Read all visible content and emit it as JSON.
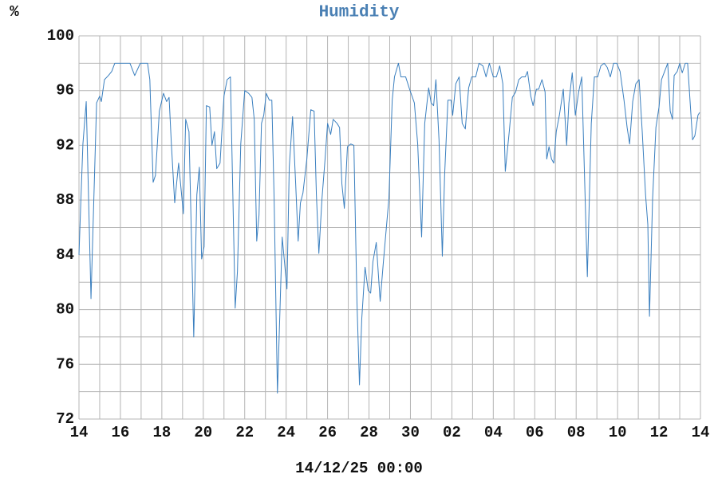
{
  "chart_data": {
    "type": "line",
    "title": "Humidity",
    "y_label": "%",
    "x_label": "14/12/25 00:00",
    "color": "#3a7fbf",
    "grid": true,
    "xlim": [
      0,
      30
    ],
    "ylim": [
      72,
      100
    ],
    "yticks": [
      72,
      76,
      80,
      84,
      88,
      92,
      96,
      100
    ],
    "xticks": [
      {
        "value": 0,
        "label": "14"
      },
      {
        "value": 2,
        "label": "16"
      },
      {
        "value": 4,
        "label": "18"
      },
      {
        "value": 6,
        "label": "20"
      },
      {
        "value": 8,
        "label": "22"
      },
      {
        "value": 10,
        "label": "24"
      },
      {
        "value": 12,
        "label": "26"
      },
      {
        "value": 14,
        "label": "28"
      },
      {
        "value": 16,
        "label": "30"
      },
      {
        "value": 18,
        "label": "02"
      },
      {
        "value": 20,
        "label": "04"
      },
      {
        "value": 22,
        "label": "06"
      },
      {
        "value": 24,
        "label": "08"
      },
      {
        "value": 26,
        "label": "10"
      },
      {
        "value": 28,
        "label": "12"
      },
      {
        "value": 30,
        "label": "14"
      }
    ],
    "x": [
      0,
      0.08,
      0.19,
      0.35,
      0.58,
      0.85,
      1.0,
      1.08,
      1.23,
      1.42,
      1.58,
      1.73,
      2.35,
      2.46,
      2.69,
      2.96,
      3.31,
      3.42,
      3.58,
      3.69,
      3.88,
      4.08,
      4.23,
      4.35,
      4.46,
      4.62,
      4.81,
      5.04,
      5.15,
      5.31,
      5.54,
      5.69,
      5.81,
      5.92,
      6.04,
      6.15,
      6.31,
      6.42,
      6.54,
      6.65,
      6.81,
      7.0,
      7.15,
      7.31,
      7.54,
      7.65,
      7.81,
      8.0,
      8.19,
      8.35,
      8.46,
      8.58,
      8.69,
      8.81,
      8.92,
      9.04,
      9.19,
      9.31,
      9.42,
      9.58,
      9.81,
      9.96,
      10.04,
      10.15,
      10.31,
      10.46,
      10.58,
      10.69,
      10.81,
      11.0,
      11.19,
      11.35,
      11.46,
      11.58,
      11.73,
      11.88,
      12.0,
      12.15,
      12.27,
      12.46,
      12.58,
      12.69,
      12.81,
      12.96,
      13.12,
      13.27,
      13.42,
      13.54,
      13.65,
      13.81,
      13.96,
      14.08,
      14.19,
      14.35,
      14.54,
      14.69,
      14.85,
      14.96,
      15.12,
      15.23,
      15.42,
      15.54,
      15.77,
      15.96,
      16.19,
      16.35,
      16.54,
      16.69,
      16.88,
      17.0,
      17.12,
      17.23,
      17.38,
      17.54,
      17.65,
      17.81,
      17.96,
      18.04,
      18.19,
      18.35,
      18.5,
      18.65,
      18.81,
      18.96,
      19.15,
      19.31,
      19.5,
      19.65,
      19.81,
      20.0,
      20.15,
      20.31,
      20.46,
      20.58,
      20.77,
      20.92,
      21.08,
      21.23,
      21.38,
      21.54,
      21.65,
      21.81,
      21.92,
      22.08,
      22.19,
      22.35,
      22.5,
      22.58,
      22.69,
      22.81,
      22.92,
      23.04,
      23.19,
      23.38,
      23.54,
      23.65,
      23.81,
      23.96,
      24.12,
      24.27,
      24.54,
      24.73,
      24.88,
      25.04,
      25.19,
      25.35,
      25.5,
      25.65,
      25.81,
      25.96,
      26.12,
      26.31,
      26.46,
      26.58,
      26.73,
      26.88,
      27.04,
      27.19,
      27.35,
      27.46,
      27.54,
      27.69,
      27.85,
      28.0,
      28.12,
      28.27,
      28.42,
      28.54,
      28.65,
      28.73,
      28.88,
      29.0,
      29.12,
      29.27,
      29.38,
      29.62,
      29.73,
      29.88,
      29.96
    ],
    "values": [
      84.0,
      87.5,
      92.1,
      95.2,
      80.8,
      95.1,
      95.6,
      95.2,
      96.8,
      97.1,
      97.4,
      98.0,
      98.0,
      98.0,
      97.1,
      98.0,
      98.0,
      96.8,
      89.3,
      89.8,
      94.5,
      95.8,
      95.2,
      95.5,
      92.1,
      87.8,
      90.7,
      87.0,
      93.9,
      93.0,
      78.0,
      88.4,
      90.4,
      83.7,
      84.6,
      94.9,
      94.8,
      92.0,
      93.0,
      90.3,
      90.7,
      95.6,
      96.8,
      97.0,
      80.1,
      82.8,
      92.1,
      96.0,
      95.8,
      95.5,
      93.9,
      85.0,
      86.9,
      93.6,
      94.2,
      95.8,
      95.3,
      95.3,
      88.1,
      73.9,
      85.3,
      82.8,
      81.5,
      90.4,
      94.1,
      89.2,
      85.0,
      87.8,
      88.5,
      91.0,
      94.6,
      94.5,
      88.4,
      84.1,
      88.1,
      91.0,
      93.6,
      92.8,
      93.9,
      93.6,
      93.3,
      89.2,
      87.4,
      91.9,
      92.1,
      92.0,
      80.5,
      74.5,
      79.3,
      83.1,
      81.4,
      81.2,
      83.5,
      84.9,
      80.6,
      83.4,
      86.2,
      88.1,
      95.3,
      97.0,
      98.0,
      97.0,
      97.0,
      96.1,
      95.1,
      92.1,
      85.3,
      93.6,
      96.2,
      95.1,
      94.9,
      96.8,
      92.4,
      83.9,
      89.8,
      95.3,
      95.3,
      94.2,
      96.5,
      97.0,
      93.6,
      93.2,
      96.2,
      97.0,
      97.0,
      98.0,
      97.8,
      97.0,
      98.0,
      97.0,
      97.0,
      97.8,
      96.5,
      90.1,
      93.0,
      95.5,
      95.9,
      96.8,
      97.0,
      97.0,
      97.4,
      95.6,
      94.9,
      96.1,
      96.1,
      96.8,
      95.9,
      91.0,
      91.9,
      91.0,
      90.7,
      93.0,
      94.2,
      96.1,
      92.0,
      95.1,
      97.3,
      94.2,
      95.9,
      97.0,
      82.4,
      93.6,
      97.0,
      97.0,
      97.8,
      98.0,
      97.7,
      97.0,
      98.0,
      98.0,
      97.4,
      95.3,
      93.3,
      92.1,
      95.2,
      96.5,
      96.8,
      93.0,
      88.4,
      86.2,
      79.5,
      88.1,
      93.3,
      94.8,
      96.8,
      97.4,
      98.0,
      94.5,
      93.9,
      97.1,
      97.4,
      98.0,
      97.3,
      98.0,
      98.0,
      92.4,
      92.7,
      94.2,
      94.4
    ]
  }
}
